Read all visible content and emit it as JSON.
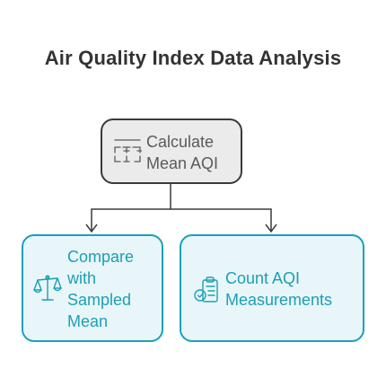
{
  "title": "Air Quality Index Data Analysis",
  "nodes": {
    "calculate": {
      "lines": [
        "Calculate",
        "Mean AQI"
      ],
      "icon": "calculator-grid-icon"
    },
    "compare": {
      "lines": [
        "Compare",
        "with",
        "Sampled",
        "Mean"
      ],
      "icon": "balance-scale-icon"
    },
    "count": {
      "lines": [
        "Count AQI",
        "Measurements"
      ],
      "icon": "clipboard-list-icon"
    }
  },
  "edges": [
    {
      "from": "calculate",
      "to": "compare"
    },
    {
      "from": "calculate",
      "to": "count"
    }
  ],
  "colors": {
    "root_fill": "#ebebeb",
    "root_border": "#3a3a3a",
    "child_fill": "#e9f6f9",
    "child_border": "#18a2b8",
    "child_text": "#1b9fb5"
  }
}
